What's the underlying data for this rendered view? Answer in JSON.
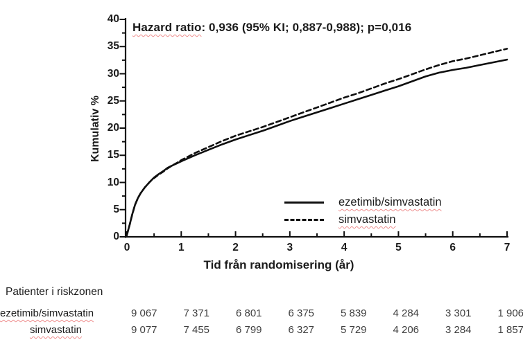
{
  "colors": {
    "text": "#1b1b1b",
    "curve": "#0f0f0f",
    "risk_numbers": "#3f3f3f",
    "squiggle": "#ee8d8d",
    "background": "#ffffff"
  },
  "annotation": {
    "underlined": "Hazard ratio",
    "rest": ": 0,936 (95% KI; 0,887-0,988); p=0,016"
  },
  "chart_data": {
    "type": "line",
    "title": "",
    "annotation": "Hazard ratio: 0,936 (95% KI; 0,887-0,988); p=0,016",
    "xlabel": "Tid från randomisering (år)",
    "ylabel": "Kumulativ  %",
    "xlim": [
      0,
      7
    ],
    "ylim": [
      0,
      40
    ],
    "x_major_ticks": [
      0,
      1,
      2,
      3,
      4,
      5,
      6,
      7
    ],
    "x_minor_ticks": [
      0.5,
      1.5,
      2.5,
      3.5,
      4.5,
      5.5,
      6.5
    ],
    "y_major_ticks": [
      0,
      5,
      10,
      15,
      20,
      25,
      30,
      35,
      40
    ],
    "y_minor_ticks": [
      2.5,
      7.5,
      12.5,
      17.5,
      22.5,
      27.5,
      32.5,
      37.5
    ],
    "grid": false,
    "legend_position": "inside-lower-right",
    "series": [
      {
        "name": "ezetimib/simvastatin",
        "style": "solid",
        "points": [
          [
            0,
            0.4
          ],
          [
            0.05,
            2.2
          ],
          [
            0.1,
            4.2
          ],
          [
            0.15,
            5.9
          ],
          [
            0.2,
            7.1
          ],
          [
            0.25,
            8.0
          ],
          [
            0.33,
            9.1
          ],
          [
            0.42,
            10.1
          ],
          [
            0.5,
            10.9
          ],
          [
            0.58,
            11.5
          ],
          [
            0.67,
            12.1
          ],
          [
            0.75,
            12.7
          ],
          [
            0.83,
            13.1
          ],
          [
            0.92,
            13.5
          ],
          [
            1,
            13.9
          ],
          [
            1.25,
            15.0
          ],
          [
            1.5,
            16.0
          ],
          [
            1.75,
            17.0
          ],
          [
            2,
            17.9
          ],
          [
            2.25,
            18.7
          ],
          [
            2.5,
            19.5
          ],
          [
            2.75,
            20.4
          ],
          [
            3,
            21.3
          ],
          [
            3.25,
            22.1
          ],
          [
            3.5,
            22.9
          ],
          [
            3.75,
            23.7
          ],
          [
            4,
            24.5
          ],
          [
            4.25,
            25.3
          ],
          [
            4.5,
            26.1
          ],
          [
            4.75,
            26.9
          ],
          [
            5,
            27.7
          ],
          [
            5.25,
            28.6
          ],
          [
            5.5,
            29.5
          ],
          [
            5.75,
            30.2
          ],
          [
            6,
            30.7
          ],
          [
            6.25,
            31.1
          ],
          [
            6.5,
            31.6
          ],
          [
            6.75,
            32.1
          ],
          [
            7,
            32.6
          ]
        ]
      },
      {
        "name": "simvastatin",
        "style": "dashed",
        "points": [
          [
            0,
            0.4
          ],
          [
            0.05,
            2.2
          ],
          [
            0.1,
            4.2
          ],
          [
            0.15,
            5.9
          ],
          [
            0.2,
            7.1
          ],
          [
            0.25,
            8.0
          ],
          [
            0.33,
            9.1
          ],
          [
            0.42,
            10.1
          ],
          [
            0.5,
            10.8
          ],
          [
            0.58,
            11.4
          ],
          [
            0.67,
            12.0
          ],
          [
            0.75,
            12.6
          ],
          [
            0.83,
            13.1
          ],
          [
            0.92,
            13.6
          ],
          [
            1,
            14.1
          ],
          [
            1.25,
            15.4
          ],
          [
            1.5,
            16.5
          ],
          [
            1.75,
            17.6
          ],
          [
            2,
            18.6
          ],
          [
            2.25,
            19.4
          ],
          [
            2.5,
            20.2
          ],
          [
            2.75,
            21.1
          ],
          [
            3,
            22.0
          ],
          [
            3.25,
            22.9
          ],
          [
            3.5,
            23.8
          ],
          [
            3.75,
            24.7
          ],
          [
            4,
            25.6
          ],
          [
            4.25,
            26.4
          ],
          [
            4.5,
            27.3
          ],
          [
            4.75,
            28.2
          ],
          [
            5,
            29.0
          ],
          [
            5.25,
            29.9
          ],
          [
            5.5,
            30.8
          ],
          [
            5.75,
            31.6
          ],
          [
            6,
            32.3
          ],
          [
            6.25,
            32.8
          ],
          [
            6.5,
            33.4
          ],
          [
            6.75,
            34.0
          ],
          [
            7,
            34.6
          ]
        ]
      }
    ]
  },
  "legend": {
    "items": [
      {
        "label": "ezetimib/simvastatin",
        "style": "solid"
      },
      {
        "label": "simvastatin",
        "style": "dashed"
      }
    ]
  },
  "risk_table": {
    "title": "Patienter i riskzonen",
    "rows": [
      {
        "label": "ezetimib/simvastatin",
        "values": [
          "9 067",
          "7 371",
          "6 801",
          "6 375",
          "5 839",
          "4 284",
          "3 301",
          "1 906"
        ]
      },
      {
        "label": "simvastatin",
        "values": [
          "9 077",
          "7 455",
          "6 799",
          "6 327",
          "5 729",
          "4 206",
          "3 284",
          "1 857"
        ]
      }
    ]
  }
}
